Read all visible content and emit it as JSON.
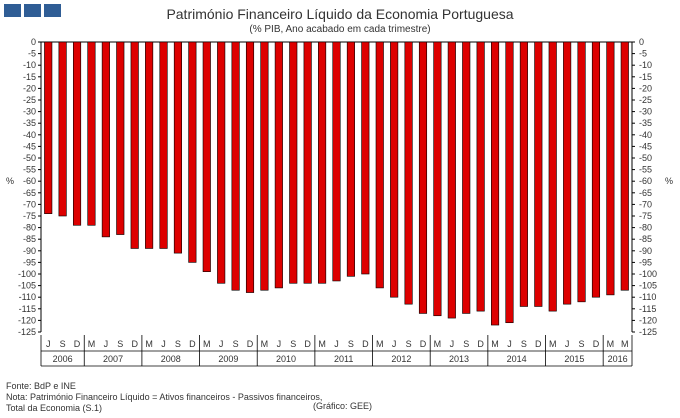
{
  "header": {
    "title": "Património Financeiro Líquido da Economia Portuguesa",
    "subtitle": "(% PIB, Ano acabado em cada trimestre)"
  },
  "footer": {
    "source": "Fonte: BdP e INE",
    "note_line1": "Nota: Património Financeiro Líquido = Ativos financeiros - Passivos financeiros,",
    "note_line2": "Total da Economia (S.1)",
    "credit": "(Gráfico: GEE)"
  },
  "colors": {
    "bar": "#dd0000",
    "logo": "#2f5d95"
  },
  "chart_data": {
    "type": "bar",
    "ylabel_left": "%",
    "ylabel_right": "%",
    "ylim": [
      -125,
      0
    ],
    "ytick_step": 5,
    "grid": false,
    "categories": [
      "J",
      "S",
      "D",
      "M",
      "J",
      "S",
      "D",
      "M",
      "J",
      "S",
      "D",
      "M",
      "J",
      "S",
      "D",
      "M",
      "J",
      "S",
      "D",
      "M",
      "J",
      "S",
      "D",
      "M",
      "J",
      "S",
      "D",
      "M",
      "J",
      "S",
      "D",
      "M",
      "J",
      "S",
      "D",
      "M",
      "J",
      "S",
      "D",
      "M",
      "M"
    ],
    "values": [
      -74,
      -75,
      -79,
      -79,
      -84,
      -83,
      -89,
      -89,
      -89,
      -91,
      -95,
      -99,
      -104,
      -107,
      -108,
      -107,
      -106,
      -104,
      -104,
      -104,
      -103,
      -101,
      -100,
      -106,
      -110,
      -113,
      -117,
      -118,
      -119,
      -117,
      -116,
      -122,
      -121,
      -114,
      -114,
      -116,
      -113,
      -112,
      -110,
      -109,
      -107
    ],
    "years": [
      {
        "label": "2006",
        "start": 0,
        "end": 2
      },
      {
        "label": "2007",
        "start": 3,
        "end": 6
      },
      {
        "label": "2008",
        "start": 7,
        "end": 10
      },
      {
        "label": "2009",
        "start": 11,
        "end": 14
      },
      {
        "label": "2010",
        "start": 15,
        "end": 18
      },
      {
        "label": "2011",
        "start": 19,
        "end": 22
      },
      {
        "label": "2012",
        "start": 23,
        "end": 26
      },
      {
        "label": "2013",
        "start": 27,
        "end": 30
      },
      {
        "label": "2014",
        "start": 31,
        "end": 34
      },
      {
        "label": "2015",
        "start": 35,
        "end": 38
      },
      {
        "label": "2016",
        "start": 39,
        "end": 40
      }
    ]
  }
}
